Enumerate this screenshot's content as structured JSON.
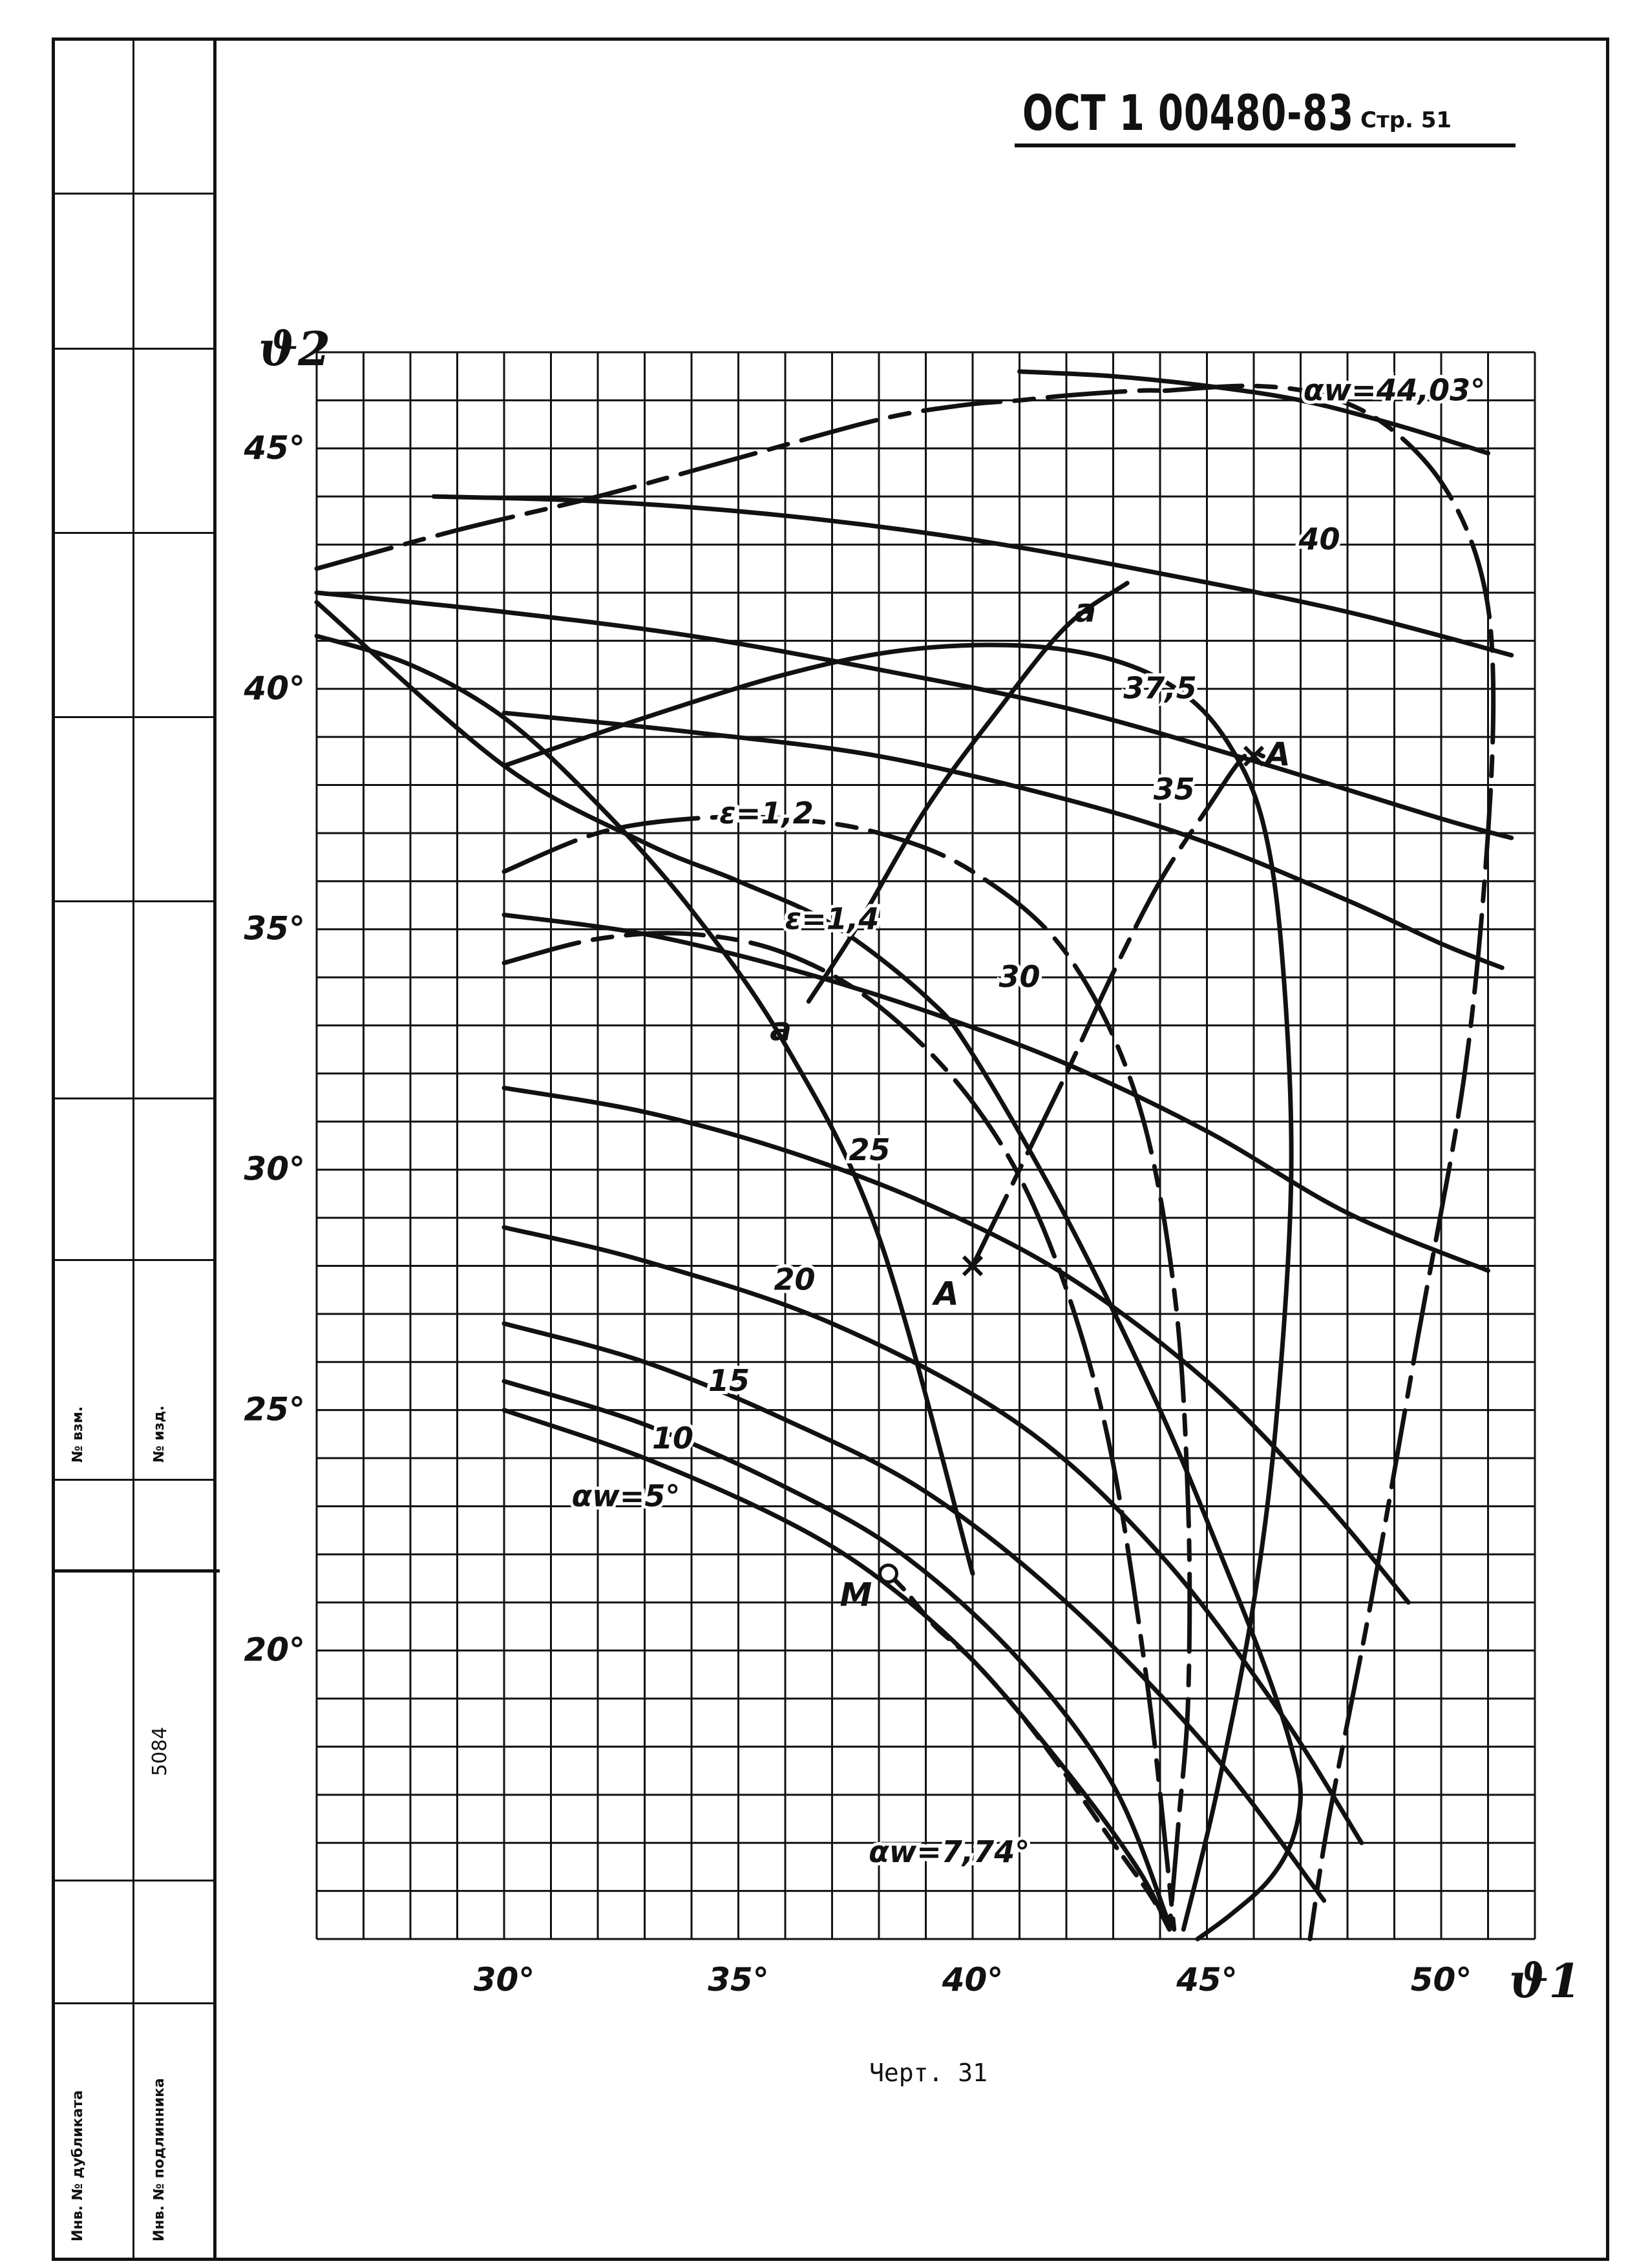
{
  "header": {
    "doc_number": "ОСТ 1 00480-83",
    "page_label": "Стр. 51"
  },
  "caption": "Черт. 31",
  "sidebar": {
    "fields": [
      "№ взм.",
      "№ изд.",
      "5084",
      "Инв. № дубликата",
      "Инв. № подлинника"
    ]
  },
  "chart_data": {
    "type": "line",
    "title": "",
    "xlabel": "ϑ1",
    "ylabel": "ϑ2",
    "xlim": [
      26,
      52
    ],
    "ylim": [
      14,
      47
    ],
    "x_ticks": [
      30,
      35,
      40,
      45,
      50
    ],
    "x_tick_labels": [
      "30°",
      "35°",
      "40°",
      "45°",
      "50°"
    ],
    "y_ticks": [
      20,
      25,
      30,
      35,
      40,
      45
    ],
    "y_tick_labels": [
      "20°",
      "25°",
      "30°",
      "35°",
      "40°",
      "45°"
    ],
    "grid": true,
    "series": [
      {
        "name": "αw=5°",
        "style": "solid",
        "x": [
          30,
          33,
          36,
          38,
          40,
          42,
          43.5,
          44.2
        ],
        "y": [
          25.0,
          24.0,
          22.7,
          21.5,
          19.8,
          17.5,
          15.5,
          14.2
        ]
      },
      {
        "name": "10",
        "style": "solid",
        "x": [
          30,
          33,
          36,
          38.5,
          41,
          43,
          44.2
        ],
        "y": [
          25.6,
          24.7,
          23.4,
          22.0,
          19.8,
          17.2,
          14.3
        ]
      },
      {
        "name": "15",
        "style": "solid",
        "x": [
          30,
          33,
          36,
          39,
          42,
          45,
          47.5
        ],
        "y": [
          26.8,
          26.0,
          24.8,
          23.3,
          21.0,
          18.0,
          14.8
        ]
      },
      {
        "name": "20",
        "style": "solid",
        "x": [
          30,
          33,
          37,
          41,
          44,
          46.5,
          48.3
        ],
        "y": [
          28.8,
          28.1,
          26.8,
          24.7,
          22.0,
          18.8,
          16.0
        ]
      },
      {
        "name": "25",
        "style": "solid",
        "x": [
          30,
          33,
          36,
          39,
          42,
          45,
          47.5,
          49.3
        ],
        "y": [
          31.7,
          31.2,
          30.4,
          29.3,
          27.8,
          25.6,
          23.1,
          21.0
        ]
      },
      {
        "name": "30",
        "style": "solid",
        "x": [
          30,
          33,
          36,
          39,
          42,
          45,
          48,
          51
        ],
        "y": [
          35.3,
          34.9,
          34.2,
          33.3,
          32.2,
          30.8,
          29.1,
          27.9
        ]
      },
      {
        "name": "35",
        "style": "solid",
        "x": [
          30,
          34,
          38,
          42,
          45,
          48,
          50,
          51.3
        ],
        "y": [
          39.5,
          39.1,
          38.6,
          37.7,
          36.8,
          35.6,
          34.7,
          34.2
        ]
      },
      {
        "name": "37,5",
        "style": "solid",
        "x": [
          26,
          30,
          34,
          38,
          42,
          46,
          50,
          51.5
        ],
        "y": [
          42.0,
          41.6,
          41.1,
          40.4,
          39.6,
          38.5,
          37.3,
          36.9
        ]
      },
      {
        "name": "40",
        "style": "solid",
        "x": [
          28.5,
          32,
          36,
          40,
          44,
          48,
          51.5
        ],
        "y": [
          44.0,
          43.9,
          43.6,
          43.1,
          42.4,
          41.6,
          40.7
        ]
      },
      {
        "name": "αw=44,03°",
        "style": "solid",
        "x": [
          41,
          43,
          45,
          47,
          49,
          51
        ],
        "y": [
          46.6,
          46.5,
          46.3,
          46.0,
          45.5,
          44.9
        ]
      },
      {
        "name": "ε=1,2",
        "style": "mixed",
        "x": [
          30,
          32,
          34,
          36,
          38,
          40,
          42,
          43.5,
          44.3,
          44.6,
          44.6,
          44.4,
          44.2
        ],
        "y": [
          36.2,
          37.0,
          37.3,
          37.3,
          37.0,
          36.2,
          34.5,
          31.5,
          27.5,
          23.0,
          19.0,
          16.5,
          14.2
        ]
      },
      {
        "name": "ε=1,4",
        "style": "mixed",
        "x": [
          30,
          32,
          34,
          36,
          38,
          40,
          41.5,
          42.8,
          43.7,
          44.3
        ],
        "y": [
          34.3,
          34.8,
          34.9,
          34.5,
          33.4,
          31.4,
          28.8,
          24.8,
          19.5,
          14.2
        ]
      },
      {
        "name": "",
        "style": "mixed",
        "x": [
          26,
          29,
          32,
          35,
          38,
          39.8,
          41,
          42,
          43.5,
          44.1
        ],
        "y": [
          42.5,
          43.3,
          44.0,
          44.8,
          45.6,
          45.9,
          46.0,
          46.1,
          46.2,
          46.2
        ]
      },
      {
        "name": "",
        "style": "mixed",
        "x": [
          44.1,
          46,
          47.5,
          48.8,
          50,
          50.8,
          51.1,
          51,
          50.5,
          49.5,
          48.5,
          47.6,
          47.2
        ],
        "y": [
          46.2,
          46.3,
          46.1,
          45.5,
          44.3,
          42.6,
          40.5,
          37.0,
          32.0,
          26.5,
          21.0,
          16.5,
          14.0
        ]
      },
      {
        "name": "",
        "style": "solid",
        "x": [
          26,
          28,
          30,
          32,
          34,
          36,
          38,
          40
        ],
        "y": [
          41.1,
          40.5,
          39.4,
          37.6,
          35.4,
          32.6,
          28.6,
          21.6
        ]
      },
      {
        "name": "",
        "style": "dashed",
        "x": [
          38.2,
          38.6,
          39.2,
          40.0,
          41.0,
          42.0,
          43.0,
          43.8,
          44.2
        ],
        "y": [
          21.6,
          21.2,
          20.5,
          19.8,
          18.7,
          17.4,
          16.0,
          14.9,
          14.2
        ]
      },
      {
        "name": "",
        "style": "solid",
        "x": [
          26,
          30,
          33,
          35,
          37,
          39,
          40,
          42,
          44,
          45.5,
          46.3,
          46.8,
          47,
          46.8,
          46.3,
          45.5,
          44.8
        ],
        "y": [
          41.8,
          38.4,
          36.8,
          36.0,
          35.1,
          33.6,
          32.4,
          29.0,
          25.0,
          21.5,
          19.5,
          18.0,
          17.0,
          16.0,
          15.2,
          14.5,
          14.0
        ]
      },
      {
        "name": "",
        "style": "solid",
        "x": [
          30,
          33,
          36,
          38.5,
          41,
          43,
          44.5,
          45.5,
          46.2,
          46.6,
          46.8,
          46.5,
          46.0,
          45.2,
          44.5
        ],
        "y": [
          38.4,
          39.4,
          40.3,
          40.8,
          40.9,
          40.6,
          39.9,
          38.8,
          37.2,
          34.5,
          30.0,
          25.0,
          21.0,
          17.0,
          14.2
        ]
      },
      {
        "name": "a–a",
        "style": "solid",
        "x": [
          36.5,
          37.5,
          39,
          40.5,
          42,
          43.3
        ],
        "y": [
          33.5,
          35.0,
          37.5,
          39.5,
          41.3,
          42.2
        ]
      },
      {
        "name": "A–A",
        "style": "mixed",
        "x": [
          40,
          41,
          42,
          43,
          44,
          45,
          45.8,
          46.2
        ],
        "y": [
          28.0,
          30.0,
          32.0,
          34.1,
          36.0,
          37.5,
          38.6,
          38.6
        ]
      }
    ],
    "points": [
      {
        "label": "M",
        "x": 38.2,
        "y": 21.6,
        "marker": "open-circle"
      },
      {
        "label": "A",
        "x": 40.0,
        "y": 28.0,
        "marker": "cross"
      },
      {
        "label": "A",
        "x": 46.0,
        "y": 38.6,
        "marker": "cross"
      },
      {
        "label": "a",
        "x": 36.5,
        "y": 33.5,
        "marker": "none"
      },
      {
        "label": "a",
        "x": 43.0,
        "y": 42.2,
        "marker": "none"
      }
    ],
    "annotations": [
      {
        "text": "αw=44,03°",
        "x": 49.0,
        "y": 46.0
      },
      {
        "text": "40",
        "x": 47.4,
        "y": 42.9
      },
      {
        "text": "37,5",
        "x": 44.0,
        "y": 39.8
      },
      {
        "text": "35",
        "x": 44.3,
        "y": 37.7
      },
      {
        "text": "ε=1,2",
        "x": 35.6,
        "y": 37.2
      },
      {
        "text": "ε=1,4",
        "x": 37.0,
        "y": 35.0
      },
      {
        "text": "30",
        "x": 41.0,
        "y": 33.8
      },
      {
        "text": "25",
        "x": 37.8,
        "y": 30.2
      },
      {
        "text": "20",
        "x": 36.2,
        "y": 27.5
      },
      {
        "text": "15",
        "x": 34.8,
        "y": 25.4
      },
      {
        "text": "10",
        "x": 33.6,
        "y": 24.2
      },
      {
        "text": "αw=5°",
        "x": 32.6,
        "y": 23.0
      },
      {
        "text": "αw=7,74°",
        "x": 39.5,
        "y": 15.6
      }
    ],
    "axis_titles": {
      "x": "ϑ1",
      "y": "ϑ2"
    }
  }
}
